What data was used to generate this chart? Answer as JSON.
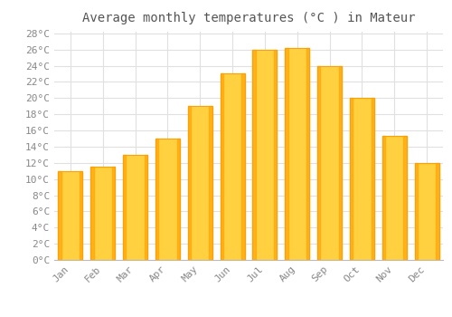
{
  "title": "Average monthly temperatures (°C ) in Mateur",
  "months": [
    "Jan",
    "Feb",
    "Mar",
    "Apr",
    "May",
    "Jun",
    "Jul",
    "Aug",
    "Sep",
    "Oct",
    "Nov",
    "Dec"
  ],
  "values": [
    11.0,
    11.5,
    13.0,
    15.0,
    19.0,
    23.0,
    26.0,
    26.2,
    24.0,
    20.0,
    15.3,
    12.0
  ],
  "bar_color_center": "#FFD040",
  "bar_color_edge": "#FFA000",
  "background_color": "#ffffff",
  "grid_color": "#e0e0e0",
  "ytick_max": 28,
  "ytick_step": 2,
  "title_fontsize": 10,
  "tick_fontsize": 8,
  "label_color": "#888888",
  "figsize": [
    5.0,
    3.5
  ],
  "dpi": 100
}
